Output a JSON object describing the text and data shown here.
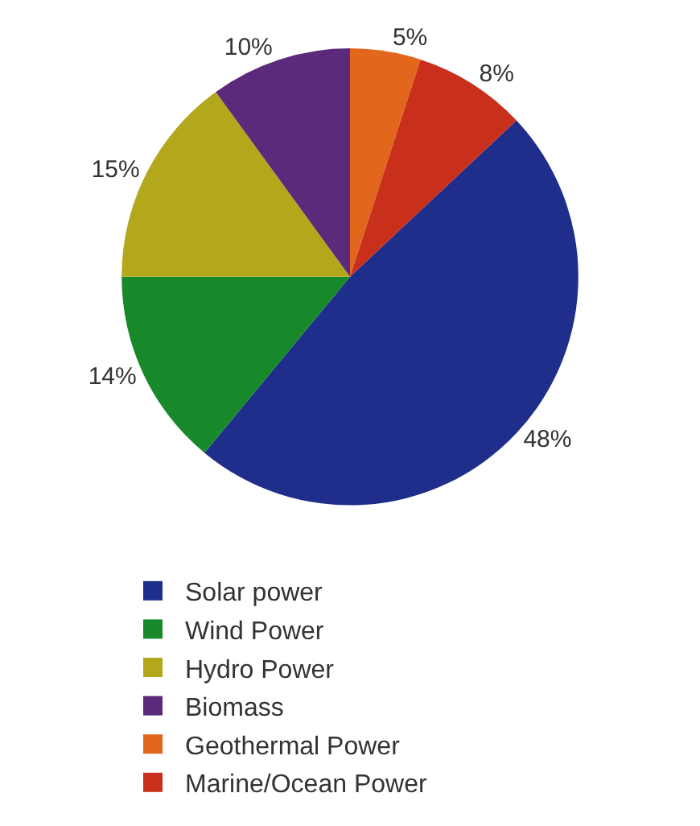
{
  "chart_data": {
    "type": "pie",
    "categories": [
      "Solar power",
      "Wind Power",
      "Hydro Power",
      "Biomass",
      "Geothermal Power",
      "Marine/Ocean Power"
    ],
    "values": [
      48,
      14,
      15,
      10,
      5,
      8
    ],
    "value_labels": [
      "48%",
      "14%",
      "15%",
      "10%",
      "5%",
      "8%"
    ],
    "colors": [
      "#1f2e8a",
      "#17892b",
      "#b3a81c",
      "#5b2a7a",
      "#e2661c",
      "#c8301c"
    ],
    "legend": "bottom left"
  }
}
